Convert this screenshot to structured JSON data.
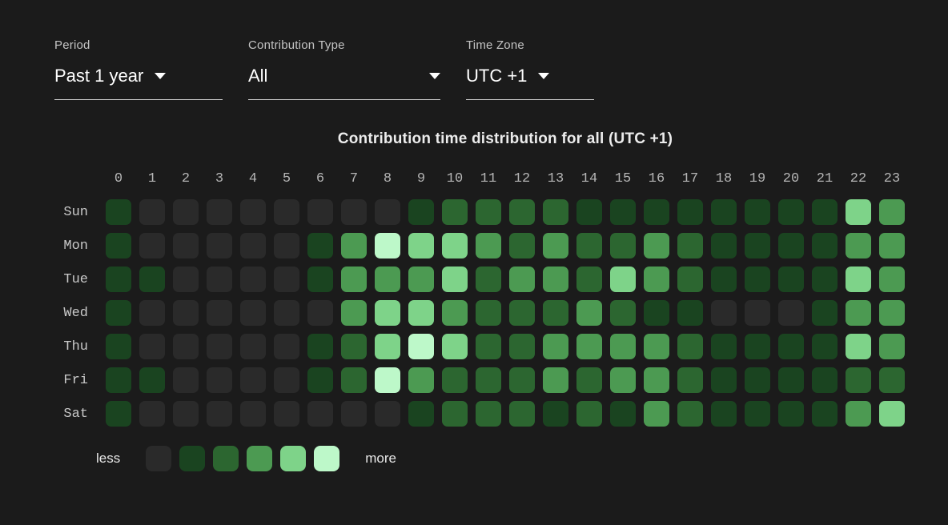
{
  "colors": {
    "background": "#1b1b1b",
    "underline": "#d0d0d0",
    "text_primary": "#ffffff",
    "text_secondary": "#c4c4c4",
    "axis_text": "#b5b5b5"
  },
  "controls": {
    "period": {
      "label": "Period",
      "value": "Past 1 year"
    },
    "contribution_type": {
      "label": "Contribution Type",
      "value": "All"
    },
    "time_zone": {
      "label": "Time Zone",
      "value": "UTC +1"
    }
  },
  "chart_data": {
    "type": "heatmap",
    "title": "Contribution time distribution for all (UTC +1)",
    "x_labels": [
      "0",
      "1",
      "2",
      "3",
      "4",
      "5",
      "6",
      "7",
      "8",
      "9",
      "10",
      "11",
      "12",
      "13",
      "14",
      "15",
      "16",
      "17",
      "18",
      "19",
      "20",
      "21",
      "22",
      "23"
    ],
    "y_labels": [
      "Sun",
      "Mon",
      "Tue",
      "Wed",
      "Thu",
      "Fri",
      "Sat"
    ],
    "level_colors": [
      "#2a2a2a",
      "#1a4420",
      "#2c6630",
      "#4c9a52",
      "#7ed389",
      "#bdf8c9"
    ],
    "series": [
      {
        "name": "Sun",
        "values": [
          1,
          0,
          0,
          0,
          0,
          0,
          0,
          0,
          0,
          1,
          2,
          2,
          2,
          2,
          1,
          1,
          1,
          1,
          1,
          1,
          1,
          1,
          4,
          3
        ]
      },
      {
        "name": "Mon",
        "values": [
          1,
          0,
          0,
          0,
          0,
          0,
          1,
          3,
          5,
          4,
          4,
          3,
          2,
          3,
          2,
          2,
          3,
          2,
          1,
          1,
          1,
          1,
          3,
          3
        ]
      },
      {
        "name": "Tue",
        "values": [
          1,
          1,
          0,
          0,
          0,
          0,
          1,
          3,
          3,
          3,
          4,
          2,
          3,
          3,
          2,
          4,
          3,
          2,
          1,
          1,
          1,
          1,
          4,
          3
        ]
      },
      {
        "name": "Wed",
        "values": [
          1,
          0,
          0,
          0,
          0,
          0,
          0,
          3,
          4,
          4,
          3,
          2,
          2,
          2,
          3,
          2,
          1,
          1,
          0,
          0,
          0,
          1,
          3,
          3
        ]
      },
      {
        "name": "Thu",
        "values": [
          1,
          0,
          0,
          0,
          0,
          0,
          1,
          2,
          4,
          5,
          4,
          2,
          2,
          3,
          3,
          3,
          3,
          2,
          1,
          1,
          1,
          1,
          4,
          3
        ]
      },
      {
        "name": "Fri",
        "values": [
          1,
          1,
          0,
          0,
          0,
          0,
          1,
          2,
          5,
          3,
          2,
          2,
          2,
          3,
          2,
          3,
          3,
          2,
          1,
          1,
          1,
          1,
          2,
          2
        ]
      },
      {
        "name": "Sat",
        "values": [
          1,
          0,
          0,
          0,
          0,
          0,
          0,
          0,
          0,
          1,
          2,
          2,
          2,
          1,
          2,
          1,
          3,
          2,
          1,
          1,
          1,
          1,
          3,
          4
        ]
      }
    ],
    "legend": {
      "less_label": "less",
      "more_label": "more"
    },
    "value_scale": "levels 0 (none) to 5 (most contributions)",
    "grid": "off",
    "legend_position": "bottom-left"
  }
}
